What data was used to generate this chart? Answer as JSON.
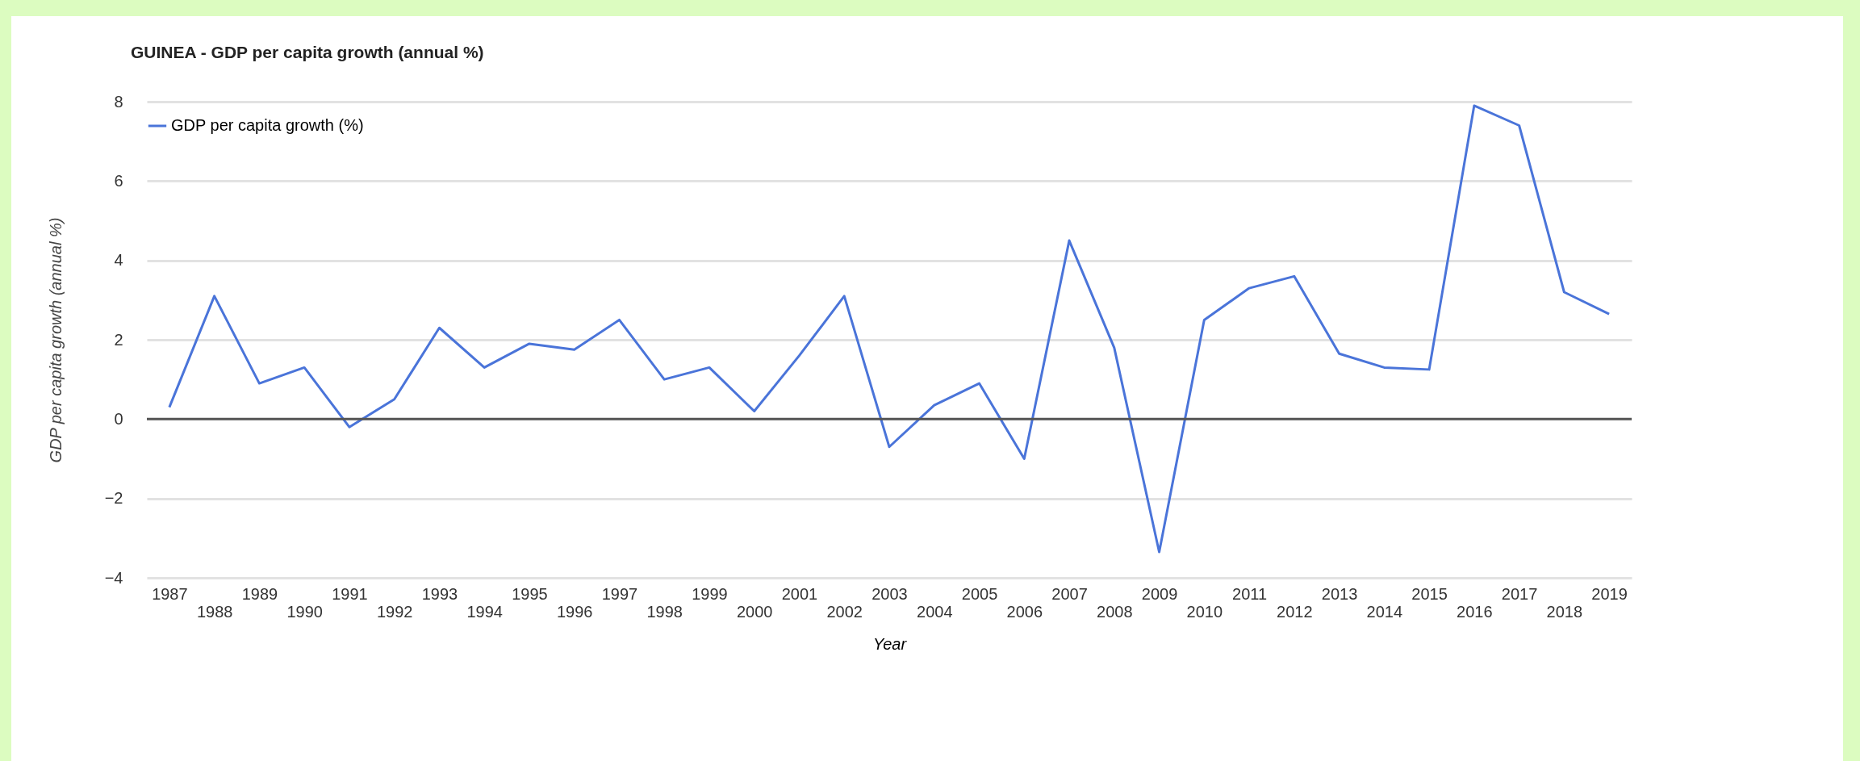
{
  "chart_data": {
    "type": "line",
    "title": "GUINEA - GDP per capita growth (annual %)",
    "xlabel": "Year",
    "ylabel": "GDP per capita growth (annual %)",
    "categories": [
      "1987",
      "1988",
      "1989",
      "1990",
      "1991",
      "1992",
      "1993",
      "1994",
      "1995",
      "1996",
      "1997",
      "1998",
      "1999",
      "2000",
      "2001",
      "2002",
      "2003",
      "2004",
      "2005",
      "2006",
      "2007",
      "2008",
      "2009",
      "2010",
      "2011",
      "2012",
      "2013",
      "2014",
      "2015",
      "2016",
      "2017",
      "2018",
      "2019"
    ],
    "series": [
      {
        "name": "GDP per capita growth (%)",
        "color": "#4a74d9",
        "values": [
          0.3,
          3.1,
          0.9,
          1.3,
          -0.2,
          0.5,
          2.3,
          1.3,
          1.9,
          1.75,
          2.5,
          1.0,
          1.3,
          0.2,
          1.6,
          3.1,
          -0.7,
          0.35,
          0.9,
          -1.0,
          4.5,
          1.8,
          -3.35,
          2.5,
          3.3,
          3.6,
          1.65,
          1.3,
          1.25,
          7.9,
          7.4,
          3.2,
          2.65
        ]
      }
    ],
    "ylim": [
      -4,
      8
    ],
    "yticks": [
      -4,
      -2,
      0,
      2,
      4,
      6,
      8
    ],
    "grid": "y",
    "legend": "top",
    "ref_lines": [
      {
        "axis": "y",
        "value": 0,
        "color": "#555555"
      }
    ]
  }
}
